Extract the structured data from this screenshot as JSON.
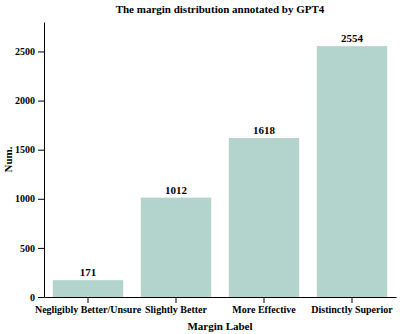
{
  "chart_data": {
    "type": "bar",
    "title": "The margin distribution annotated by GPT4",
    "x_label": "Margin Label",
    "y_label": "Num.",
    "categories": [
      "Negligibly Better/Unsure",
      "Slightly Better",
      "More Effective",
      "Distinctly Superior"
    ],
    "values": [
      171,
      1012,
      1618,
      2554
    ],
    "color": "#b3d4cc",
    "ylim": [
      0,
      2800
    ],
    "yticks": [
      0,
      500,
      1000,
      1500,
      2000,
      2500
    ],
    "grid": false,
    "data_labels": true
  }
}
